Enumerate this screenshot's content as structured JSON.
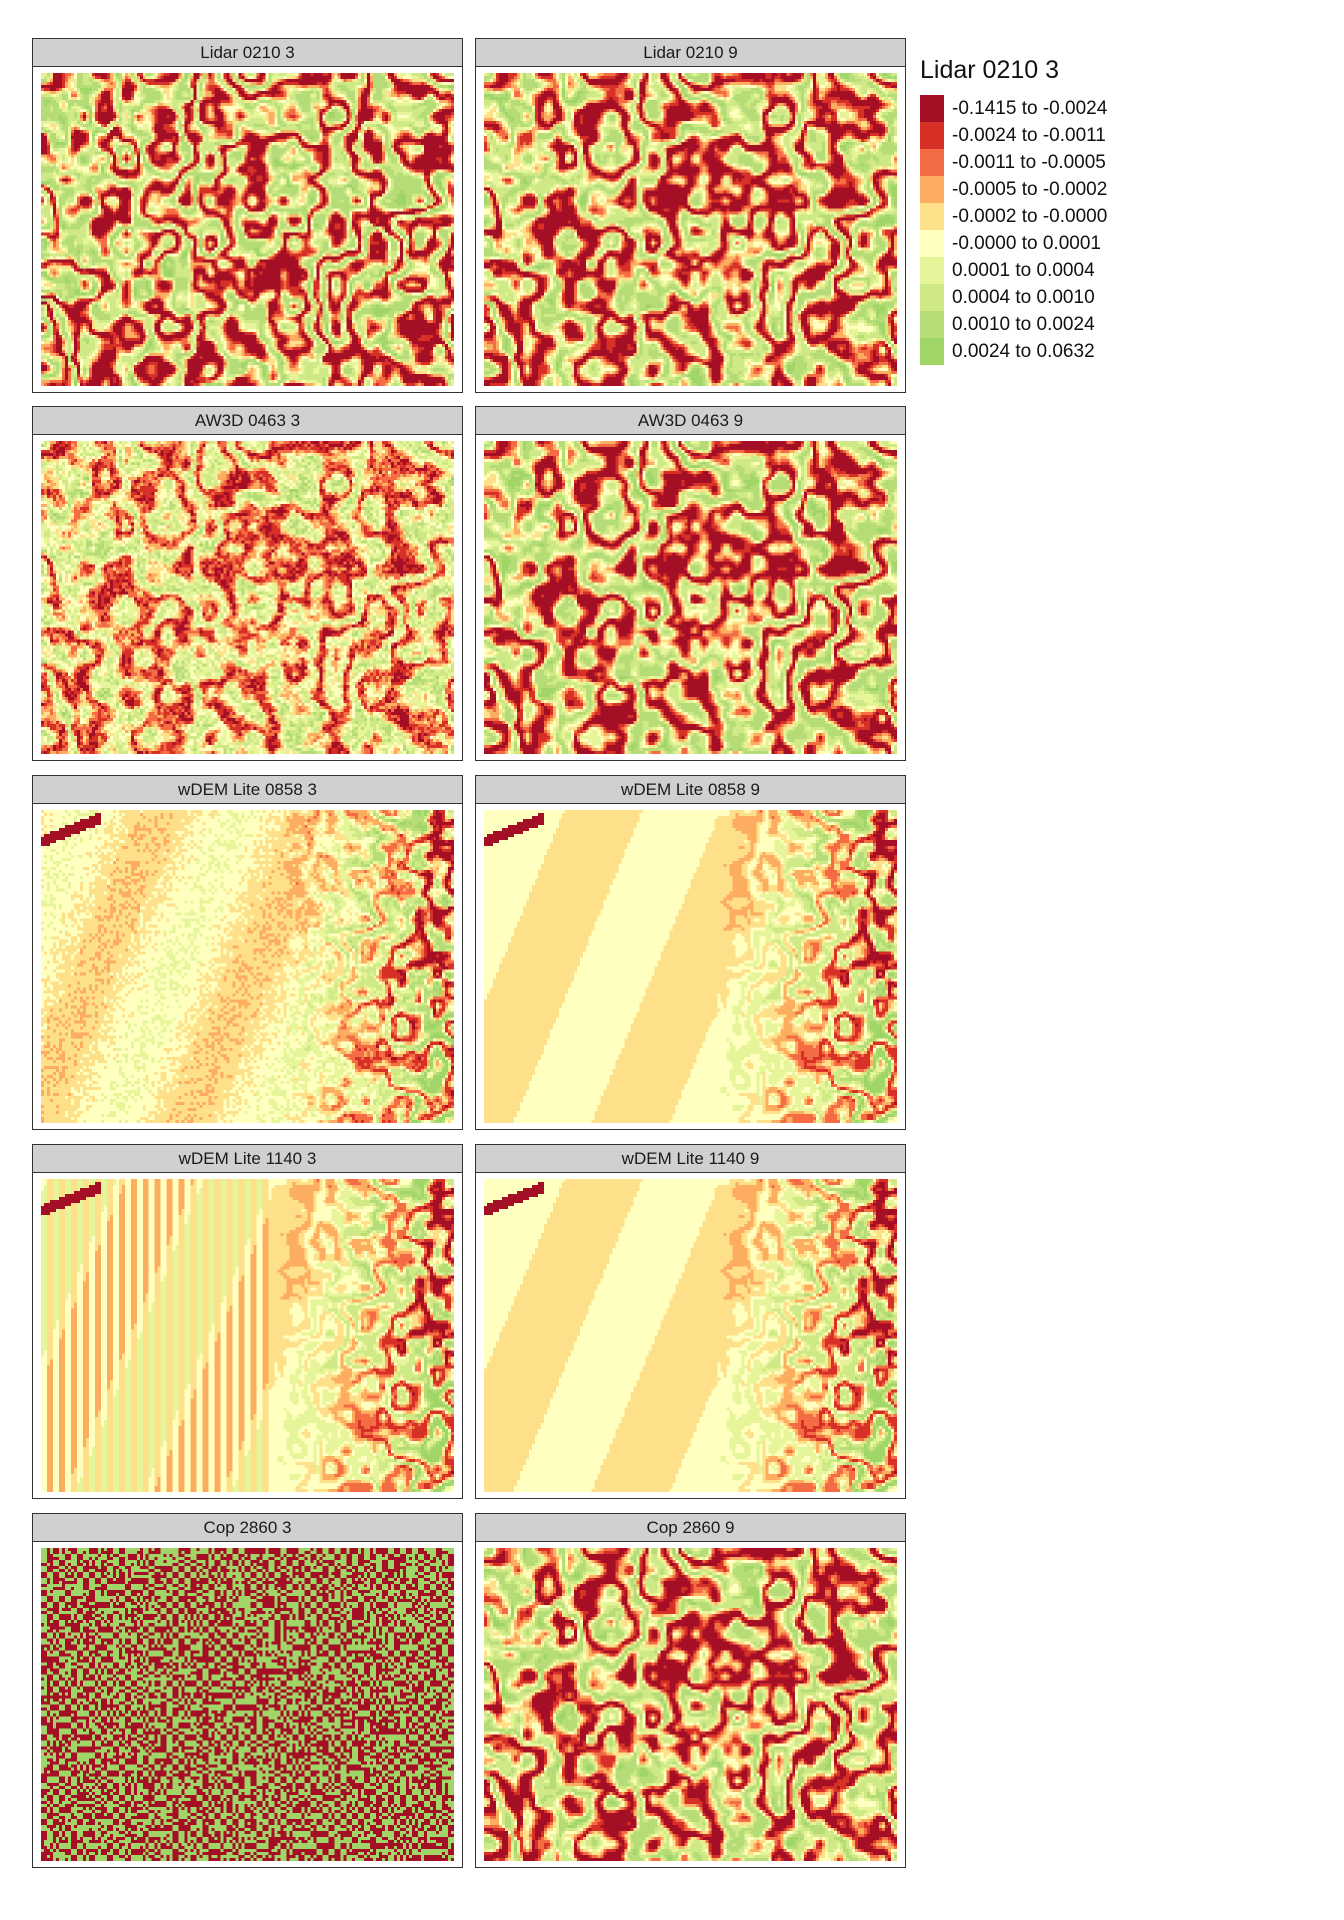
{
  "panels": [
    {
      "title": "Lidar 0210 3",
      "pattern": "organic-fine"
    },
    {
      "title": "Lidar 0210 9",
      "pattern": "organic-smooth"
    },
    {
      "title": "AW3D 0463 3",
      "pattern": "organic-noisy"
    },
    {
      "title": "AW3D 0463 9",
      "pattern": "organic-smooth"
    },
    {
      "title": "wDEM Lite 0858 3",
      "pattern": "pale-fine"
    },
    {
      "title": "wDEM Lite 0858 9",
      "pattern": "pale-smooth"
    },
    {
      "title": "wDEM Lite 1140 3",
      "pattern": "pale-striped"
    },
    {
      "title": "wDEM Lite 1140 9",
      "pattern": "pale-smooth"
    },
    {
      "title": "Cop 2860 3",
      "pattern": "grid-artifact"
    },
    {
      "title": "Cop 2860 9",
      "pattern": "organic-smooth"
    }
  ],
  "legend": {
    "title": "Lidar 0210 3",
    "entries": [
      {
        "label": "-0.1415 to -0.0024",
        "color": "#a50f26"
      },
      {
        "label": "-0.0024 to -0.0011",
        "color": "#d63027"
      },
      {
        "label": "-0.0011 to -0.0005",
        "color": "#f46c43"
      },
      {
        "label": "-0.0005 to -0.0002",
        "color": "#fcad60"
      },
      {
        "label": "-0.0002 to -0.0000",
        "color": "#fee08b"
      },
      {
        "label": "-0.0000 to 0.0001",
        "color": "#ffffbf"
      },
      {
        "label": "0.0001 to 0.0004",
        "color": "#e6f59a"
      },
      {
        "label": "0.0004 to 0.0010",
        "color": "#d0e987"
      },
      {
        "label": "0.0010 to 0.0024",
        "color": "#b6dc78"
      },
      {
        "label": "0.0024 to 0.0632",
        "color": "#a0d567"
      }
    ]
  }
}
